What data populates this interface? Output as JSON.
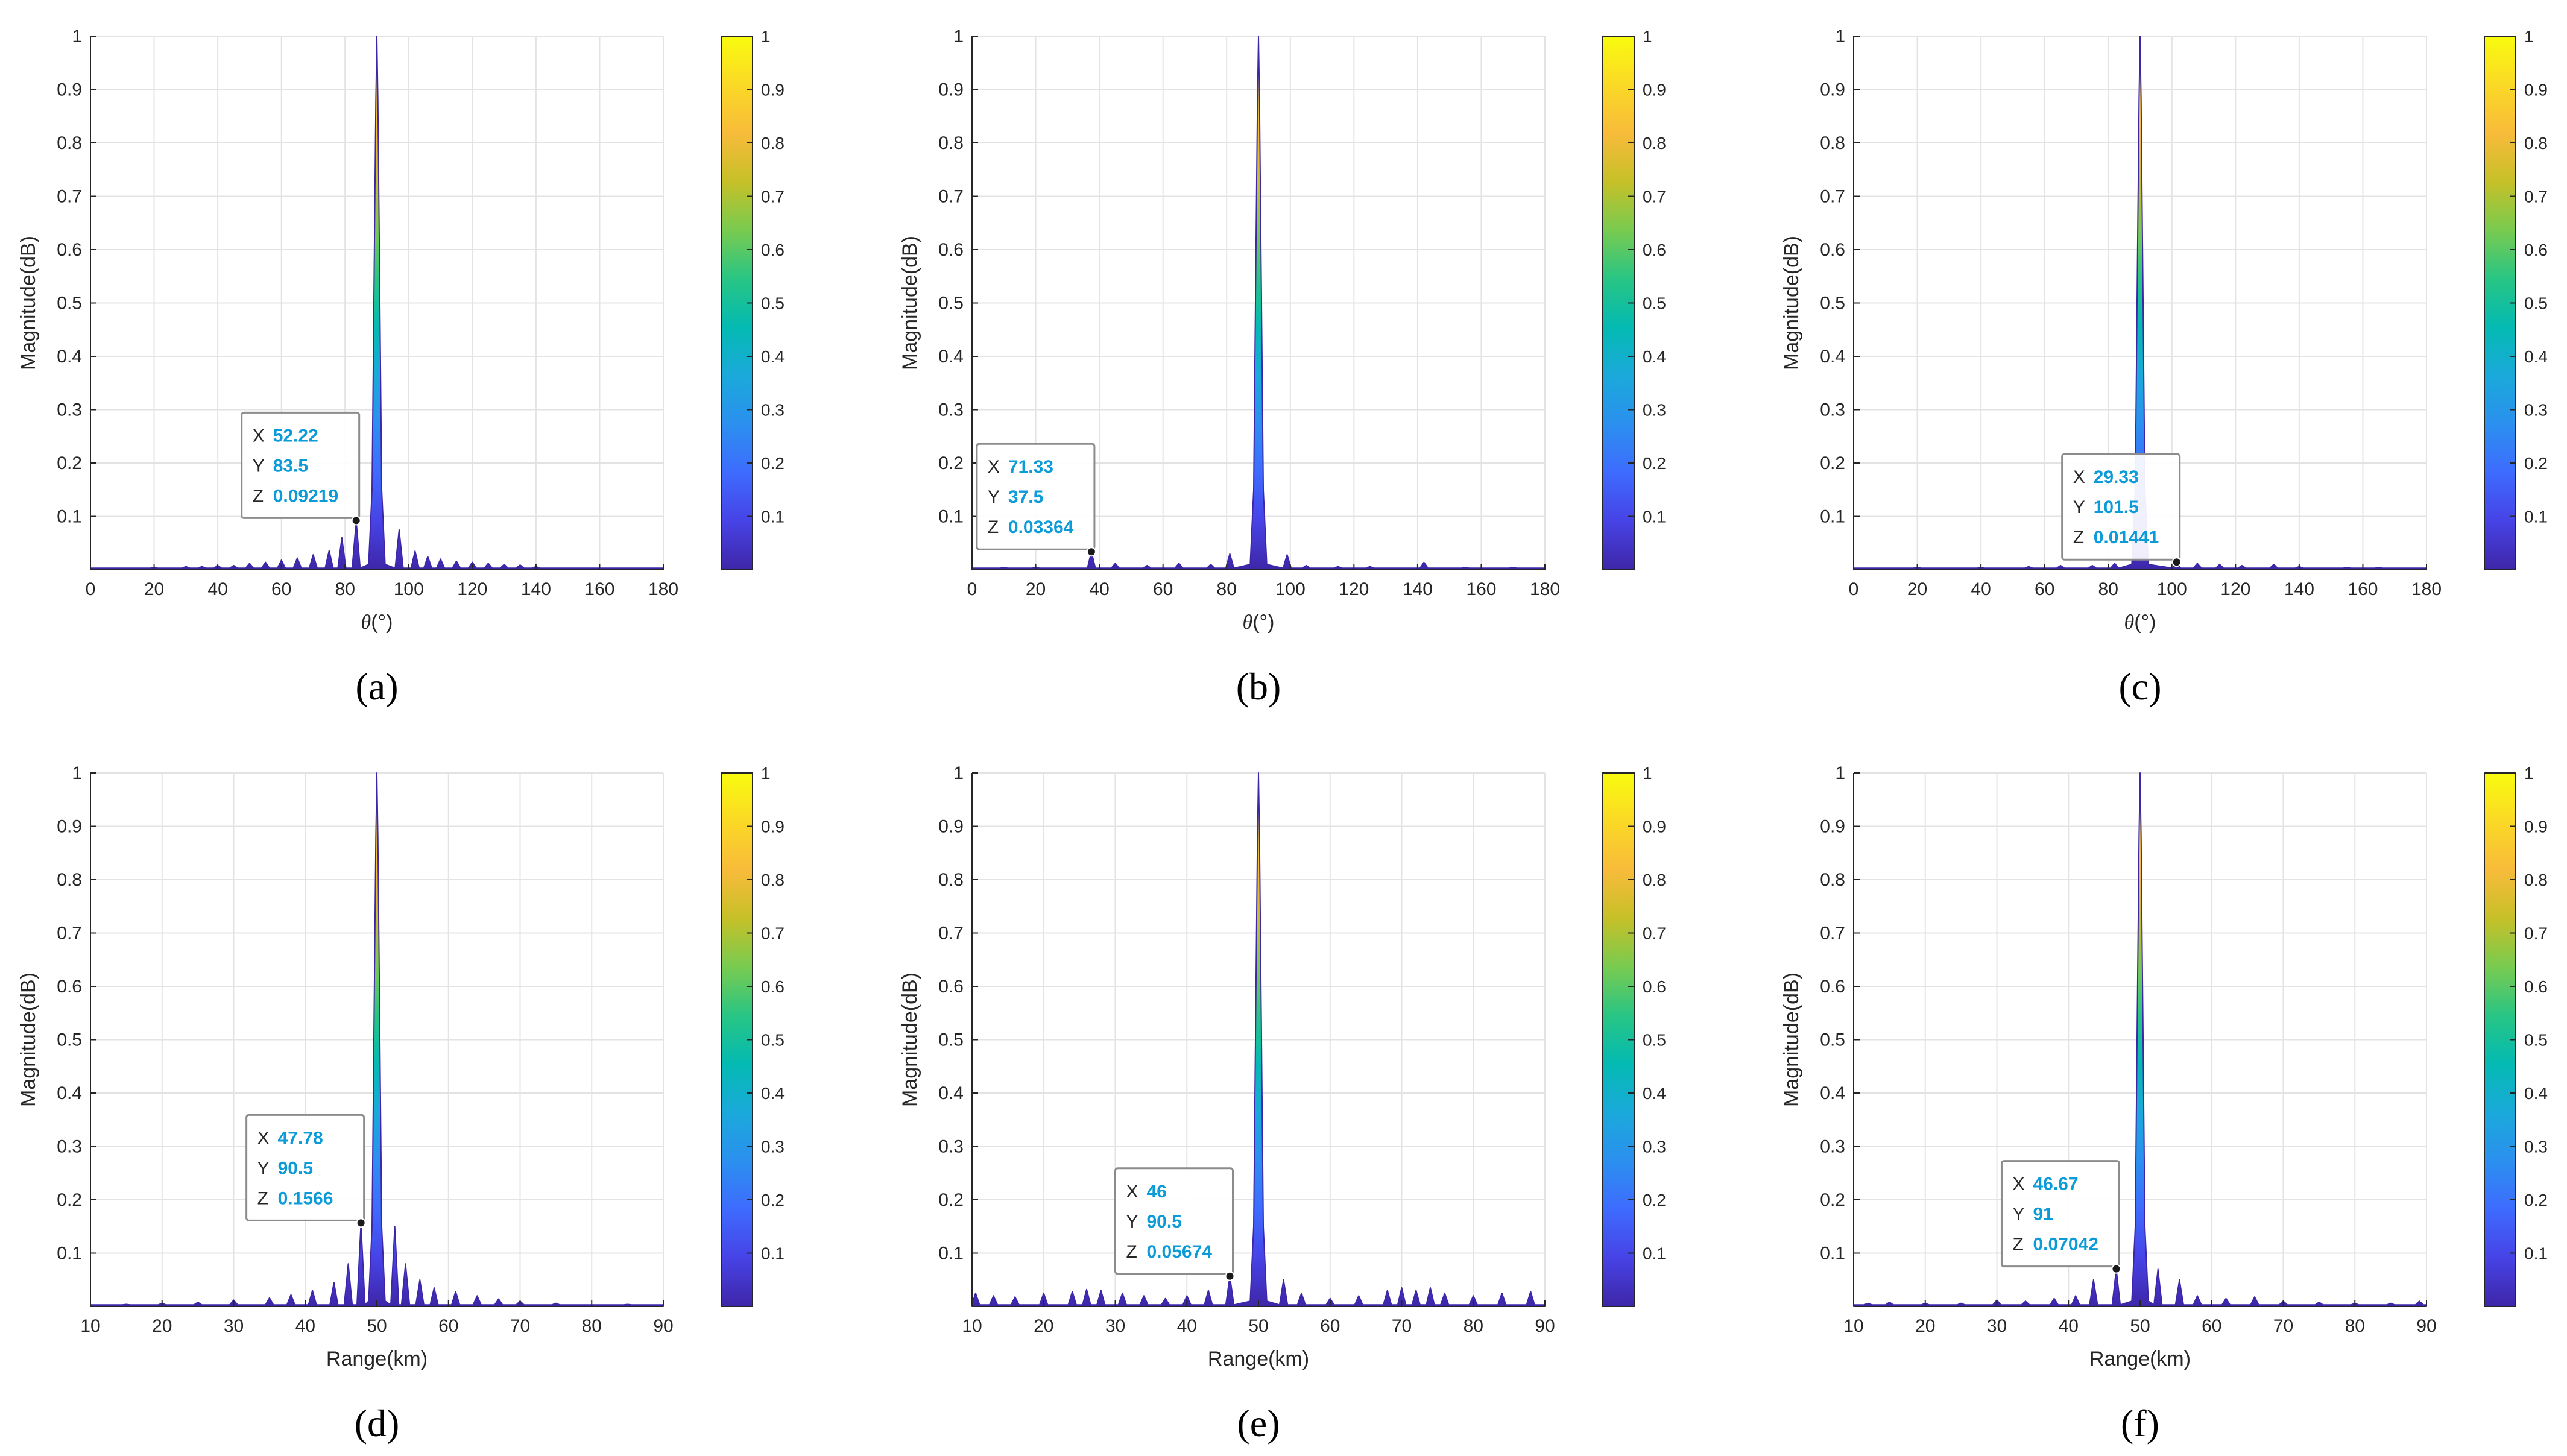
{
  "colors": {
    "axis": "#262626",
    "grid": "#e3e3e3",
    "datatip_value": "#0a9bd8",
    "parula": [
      "#3e26a8",
      "#4743e6",
      "#3e6bfe",
      "#2b90ef",
      "#1aa9da",
      "#04bab2",
      "#28c584",
      "#78cb50",
      "#c6c028",
      "#f8bb3a",
      "#fad926",
      "#f9fb0e"
    ]
  },
  "chart_data": [
    {
      "type": "area",
      "panel_label": "(a)",
      "panel_letter": "a",
      "xlabel": "θ(°)",
      "xlabel_symbol": "θ",
      "xlabel_unit": "(°)",
      "ylabel": "Magnitude(dB)",
      "xlim": [
        0,
        180
      ],
      "ylim": [
        0,
        1
      ],
      "xticks": [
        0,
        20,
        40,
        60,
        80,
        100,
        120,
        140,
        160,
        180
      ],
      "yticks": [
        0.1,
        0.2,
        0.3,
        0.4,
        0.5,
        0.6,
        0.7,
        0.8,
        0.9,
        1
      ],
      "colorbar_ticks": [
        0.1,
        0.2,
        0.3,
        0.4,
        0.5,
        0.6,
        0.7,
        0.8,
        0.9,
        1
      ],
      "peak": {
        "x": 90,
        "y": 1
      },
      "sidelobes": [
        [
          20,
          0.004
        ],
        [
          30,
          0.006
        ],
        [
          35,
          0.006
        ],
        [
          40,
          0.008
        ],
        [
          45,
          0.008
        ],
        [
          50,
          0.012
        ],
        [
          55,
          0.014
        ],
        [
          60,
          0.018
        ],
        [
          65,
          0.022
        ],
        [
          70,
          0.028
        ],
        [
          75,
          0.036
        ],
        [
          79,
          0.06
        ],
        [
          83.5,
          0.09219
        ],
        [
          97,
          0.075
        ],
        [
          102,
          0.035
        ],
        [
          106,
          0.025
        ],
        [
          110,
          0.02
        ],
        [
          115,
          0.016
        ],
        [
          120,
          0.014
        ],
        [
          125,
          0.012
        ],
        [
          130,
          0.01
        ],
        [
          135,
          0.009
        ],
        [
          140,
          0.006
        ]
      ],
      "datatip": {
        "x_key": "X",
        "x": "52.22",
        "y_key": "Y",
        "y": "83.5",
        "z_key": "Z",
        "z": "0.09219",
        "px": 83.5,
        "pz": 0.09219
      }
    },
    {
      "type": "area",
      "panel_label": "(b)",
      "panel_letter": "b",
      "xlabel": "θ(°)",
      "xlabel_symbol": "θ",
      "xlabel_unit": "(°)",
      "ylabel": "Magnitude(dB)",
      "xlim": [
        0,
        180
      ],
      "ylim": [
        0,
        1
      ],
      "xticks": [
        0,
        20,
        40,
        60,
        80,
        100,
        120,
        140,
        160,
        180
      ],
      "yticks": [
        0.1,
        0.2,
        0.3,
        0.4,
        0.5,
        0.6,
        0.7,
        0.8,
        0.9,
        1
      ],
      "colorbar_ticks": [
        0.1,
        0.2,
        0.3,
        0.4,
        0.5,
        0.6,
        0.7,
        0.8,
        0.9,
        1
      ],
      "peak": {
        "x": 90,
        "y": 1
      },
      "sidelobes": [
        [
          10,
          0.004
        ],
        [
          20,
          0.004
        ],
        [
          37.5,
          0.03364
        ],
        [
          45,
          0.012
        ],
        [
          55,
          0.008
        ],
        [
          65,
          0.012
        ],
        [
          75,
          0.01
        ],
        [
          81,
          0.03
        ],
        [
          99,
          0.028
        ],
        [
          105,
          0.008
        ],
        [
          115,
          0.006
        ],
        [
          125,
          0.006
        ],
        [
          142,
          0.014
        ],
        [
          155,
          0.004
        ],
        [
          170,
          0.004
        ]
      ],
      "datatip": {
        "x_key": "X",
        "x": "71.33",
        "y_key": "Y",
        "y": "37.5",
        "z_key": "Z",
        "z": "0.03364",
        "px": 37.5,
        "pz": 0.03364
      }
    },
    {
      "type": "area",
      "panel_label": "(c)",
      "panel_letter": "c",
      "xlabel": "θ(°)",
      "xlabel_symbol": "θ",
      "xlabel_unit": "(°)",
      "ylabel": "Magnitude(dB)",
      "xlim": [
        0,
        180
      ],
      "ylim": [
        0,
        1
      ],
      "xticks": [
        0,
        20,
        40,
        60,
        80,
        100,
        120,
        140,
        160,
        180
      ],
      "yticks": [
        0.1,
        0.2,
        0.3,
        0.4,
        0.5,
        0.6,
        0.7,
        0.8,
        0.9,
        1
      ],
      "colorbar_ticks": [
        0.1,
        0.2,
        0.3,
        0.4,
        0.5,
        0.6,
        0.7,
        0.8,
        0.9,
        1
      ],
      "peak": {
        "x": 90,
        "y": 1
      },
      "sidelobes": [
        [
          20,
          0.004
        ],
        [
          40,
          0.004
        ],
        [
          55,
          0.006
        ],
        [
          65,
          0.008
        ],
        [
          75,
          0.008
        ],
        [
          82,
          0.012
        ],
        [
          101.5,
          0.01441
        ],
        [
          108,
          0.012
        ],
        [
          115,
          0.01
        ],
        [
          122,
          0.008
        ],
        [
          132,
          0.01
        ],
        [
          140,
          0.006
        ],
        [
          155,
          0.004
        ],
        [
          165,
          0.004
        ]
      ],
      "datatip": {
        "x_key": "X",
        "x": "29.33",
        "y_key": "Y",
        "y": "101.5",
        "z_key": "Z",
        "z": "0.01441",
        "px": 101.5,
        "pz": 0.01441
      }
    },
    {
      "type": "area",
      "panel_label": "(d)",
      "panel_letter": "d",
      "xlabel": "Range(km)",
      "ylabel": "Magnitude(dB)",
      "xlim": [
        10,
        90
      ],
      "ylim": [
        0,
        1
      ],
      "xticks": [
        10,
        20,
        30,
        40,
        50,
        60,
        70,
        80,
        90
      ],
      "yticks": [
        0.1,
        0.2,
        0.3,
        0.4,
        0.5,
        0.6,
        0.7,
        0.8,
        0.9,
        1
      ],
      "colorbar_ticks": [
        0.1,
        0.2,
        0.3,
        0.4,
        0.5,
        0.6,
        0.7,
        0.8,
        0.9,
        1
      ],
      "peak": {
        "x": 50,
        "y": 1
      },
      "sidelobes": [
        [
          15,
          0.004
        ],
        [
          20,
          0.006
        ],
        [
          25,
          0.008
        ],
        [
          30,
          0.012
        ],
        [
          35,
          0.016
        ],
        [
          38,
          0.022
        ],
        [
          41,
          0.03
        ],
        [
          44,
          0.045
        ],
        [
          46,
          0.08
        ],
        [
          47.78,
          0.1566
        ],
        [
          52.5,
          0.15
        ],
        [
          54,
          0.08
        ],
        [
          56,
          0.05
        ],
        [
          58,
          0.035
        ],
        [
          61,
          0.028
        ],
        [
          64,
          0.02
        ],
        [
          67,
          0.014
        ],
        [
          70,
          0.01
        ],
        [
          75,
          0.006
        ],
        [
          85,
          0.004
        ]
      ],
      "datatip": {
        "x_key": "X",
        "x": "47.78",
        "y_key": "Y",
        "y": "90.5",
        "z_key": "Z",
        "z": "0.1566",
        "px": 47.78,
        "pz": 0.1566
      }
    },
    {
      "type": "area",
      "panel_label": "(e)",
      "panel_letter": "e",
      "xlabel": "Range(km)",
      "ylabel": "Magnitude(dB)",
      "xlim": [
        10,
        90
      ],
      "ylim": [
        0,
        1
      ],
      "xticks": [
        10,
        20,
        30,
        40,
        50,
        60,
        70,
        80,
        90
      ],
      "yticks": [
        0.1,
        0.2,
        0.3,
        0.4,
        0.5,
        0.6,
        0.7,
        0.8,
        0.9,
        1
      ],
      "colorbar_ticks": [
        0.1,
        0.2,
        0.3,
        0.4,
        0.5,
        0.6,
        0.7,
        0.8,
        0.9,
        1
      ],
      "peak": {
        "x": 50,
        "y": 1
      },
      "sidelobes": [
        [
          10.5,
          0.025
        ],
        [
          13,
          0.02
        ],
        [
          16,
          0.018
        ],
        [
          20,
          0.025
        ],
        [
          24,
          0.028
        ],
        [
          26,
          0.032
        ],
        [
          28,
          0.03
        ],
        [
          31,
          0.025
        ],
        [
          34,
          0.02
        ],
        [
          37,
          0.015
        ],
        [
          40,
          0.02
        ],
        [
          43,
          0.03
        ],
        [
          46,
          0.05674
        ],
        [
          53.5,
          0.05
        ],
        [
          56,
          0.025
        ],
        [
          60,
          0.015
        ],
        [
          64,
          0.02
        ],
        [
          68,
          0.03
        ],
        [
          70,
          0.035
        ],
        [
          72,
          0.03
        ],
        [
          74,
          0.035
        ],
        [
          76,
          0.025
        ],
        [
          80,
          0.02
        ],
        [
          84,
          0.025
        ],
        [
          88,
          0.028
        ]
      ],
      "datatip": {
        "x_key": "X",
        "x": "46",
        "y_key": "Y",
        "y": "90.5",
        "z_key": "Z",
        "z": "0.05674",
        "px": 46,
        "pz": 0.05674
      }
    },
    {
      "type": "area",
      "panel_label": "(f)",
      "panel_letter": "f",
      "xlabel": "Range(km)",
      "ylabel": "Magnitude(dB)",
      "xlim": [
        10,
        90
      ],
      "ylim": [
        0,
        1
      ],
      "xticks": [
        10,
        20,
        30,
        40,
        50,
        60,
        70,
        80,
        90
      ],
      "yticks": [
        0.1,
        0.2,
        0.3,
        0.4,
        0.5,
        0.6,
        0.7,
        0.8,
        0.9,
        1
      ],
      "colorbar_ticks": [
        0.1,
        0.2,
        0.3,
        0.4,
        0.5,
        0.6,
        0.7,
        0.8,
        0.9,
        1
      ],
      "peak": {
        "x": 50,
        "y": 1
      },
      "sidelobes": [
        [
          12,
          0.006
        ],
        [
          15,
          0.008
        ],
        [
          20,
          0.006
        ],
        [
          25,
          0.006
        ],
        [
          30,
          0.012
        ],
        [
          34,
          0.01
        ],
        [
          38,
          0.015
        ],
        [
          41,
          0.02
        ],
        [
          43.5,
          0.05
        ],
        [
          46.67,
          0.07042
        ],
        [
          52.5,
          0.07
        ],
        [
          55.5,
          0.05
        ],
        [
          58,
          0.02
        ],
        [
          62,
          0.015
        ],
        [
          66,
          0.018
        ],
        [
          70,
          0.01
        ],
        [
          75,
          0.008
        ],
        [
          80,
          0.006
        ],
        [
          85,
          0.006
        ],
        [
          89,
          0.01
        ]
      ],
      "datatip": {
        "x_key": "X",
        "x": "46.67",
        "y_key": "Y",
        "y": "91",
        "z_key": "Z",
        "z": "0.07042",
        "px": 46.67,
        "pz": 0.07042
      }
    }
  ]
}
